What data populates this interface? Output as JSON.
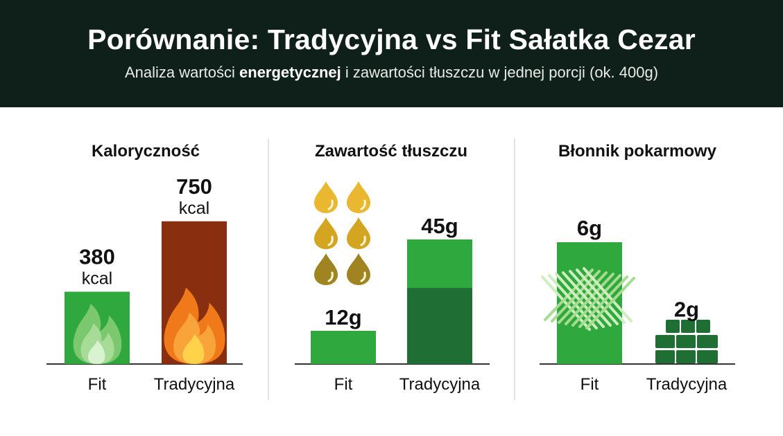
{
  "header": {
    "title": "Porównanie: Tradycyjna vs Fit Sałatka Cezar",
    "subtitle_pre": "Analiza wartości ",
    "subtitle_bold": "energetycznej",
    "subtitle_post": " i zawartości tłuszczu w jednej porcji (ok. 400g)"
  },
  "colors": {
    "header_bg": "#0f1f1a",
    "fit_green": "#2fa83e",
    "traditional_red": "#8a2e10",
    "dark_green": "#1f6e33",
    "axis": "#333333"
  },
  "chart_data": [
    {
      "type": "bar",
      "title": "Kaloryczność",
      "categories": [
        "Fit",
        "Tradycyjna"
      ],
      "values": [
        380,
        750
      ],
      "value_labels": [
        "380",
        "750"
      ],
      "unit": "kcal",
      "icons": [
        "flame-icon",
        "flame-icon"
      ]
    },
    {
      "type": "bar",
      "title": "Zawartość tłuszczu",
      "categories": [
        "Fit",
        "Tradycyjna"
      ],
      "values": [
        12,
        45
      ],
      "value_labels": [
        "12g",
        "45g"
      ],
      "icons": [
        "oil-drop-icon"
      ]
    },
    {
      "type": "bar",
      "title": "Błonnik pokarmowy",
      "categories": [
        "Fit",
        "Tradycyjna"
      ],
      "values": [
        6,
        2
      ],
      "value_labels": [
        "6g",
        "2g"
      ],
      "icons": [
        "fiber-weave-icon",
        "brick-stack-icon"
      ]
    }
  ]
}
